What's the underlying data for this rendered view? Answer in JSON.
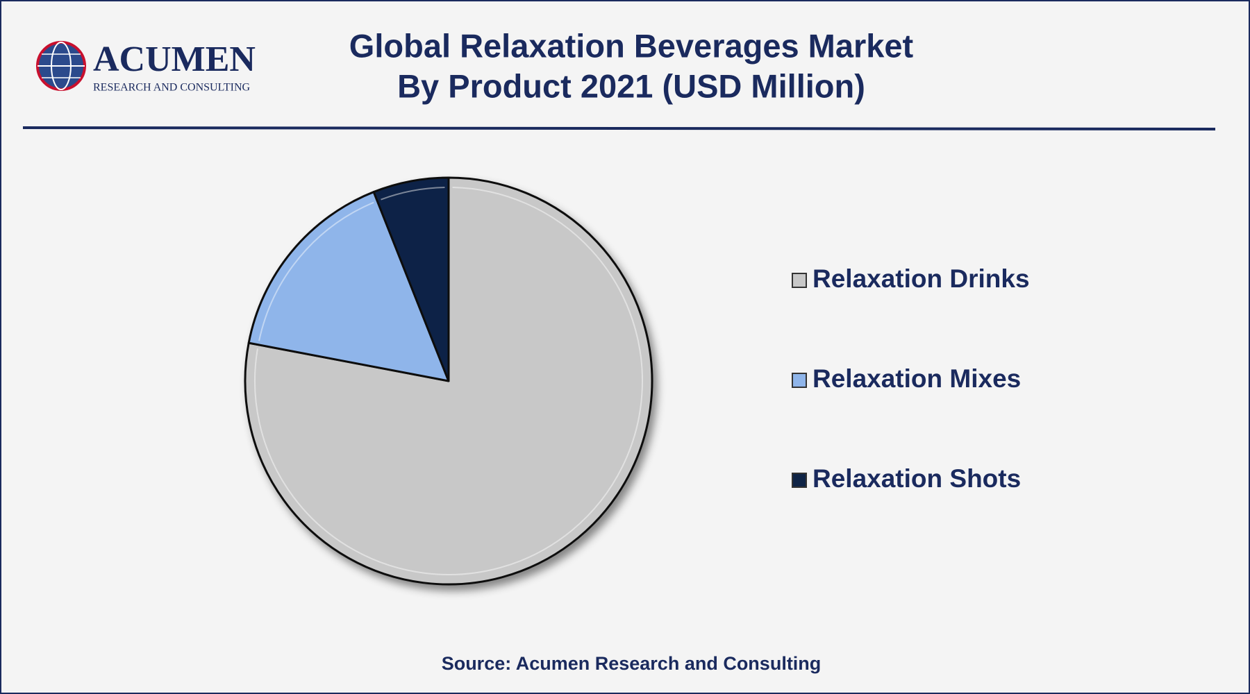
{
  "logo": {
    "name": "ACUMEN",
    "tagline": "RESEARCH AND CONSULTING"
  },
  "chart_data": {
    "type": "pie",
    "title_lines": [
      "Global Relaxation Beverages Market",
      "By Product 2021 (USD Million)"
    ],
    "categories": [
      "Relaxation Drinks",
      "Relaxation Mixes",
      "Relaxation Shots"
    ],
    "values": [
      78,
      16,
      6
    ],
    "colors": [
      "#c8c8c8",
      "#8fb5ea",
      "#0f2446"
    ],
    "source": "Source: Acumen Research and Consulting"
  }
}
